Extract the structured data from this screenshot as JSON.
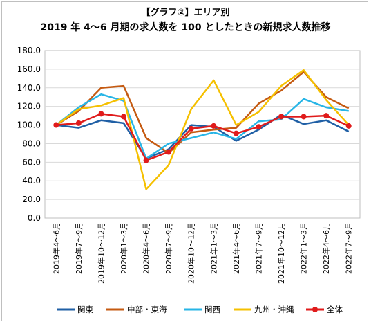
{
  "chart_data": {
    "type": "line",
    "title": "【グラフ②】エリア別",
    "subtitle": "2019 年 4～6 月期の求人数を 100 としたときの新規求人数推移",
    "categories": [
      "2019年4～6月",
      "2019年7～9月",
      "2019年10～12月",
      "2020年1～3月",
      "2020年4～6月",
      "2020年7～9月",
      "2020年10～12月",
      "2021年1～3月",
      "2021年4～6月",
      "2021年7～9月",
      "2021年10～12月",
      "2022年1～3月",
      "2022年4～6月",
      "2022年7～9月"
    ],
    "ylim": [
      0,
      180
    ],
    "yticks": [
      "0.0",
      "20.0",
      "40.0",
      "60.0",
      "80.0",
      "100.0",
      "120.0",
      "140.0",
      "160.0",
      "180.0"
    ],
    "grid": true,
    "legend_position": "bottom",
    "series": [
      {
        "name": "関東",
        "color": "#1f5fa5",
        "marker": false,
        "values": [
          100,
          97,
          105,
          102,
          64,
          74,
          100,
          98,
          83,
          95,
          111,
          101,
          105,
          93
        ]
      },
      {
        "name": "中部・東海",
        "color": "#c55a11",
        "marker": false,
        "values": [
          100,
          115,
          140,
          142,
          86,
          70,
          92,
          95,
          97,
          123,
          137,
          157,
          130,
          118
        ]
      },
      {
        "name": "関西",
        "color": "#27b5e6",
        "marker": false,
        "values": [
          100,
          119,
          133,
          126,
          64,
          80,
          86,
          92,
          85,
          104,
          106,
          128,
          119,
          115
        ]
      },
      {
        "name": "九州・沖縄",
        "color": "#f5c000",
        "marker": false,
        "values": [
          100,
          117,
          121,
          129,
          31,
          57,
          117,
          148,
          100,
          114,
          142,
          159,
          127,
          100
        ]
      },
      {
        "name": "全体",
        "color": "#e01b1b",
        "marker": true,
        "values": [
          100,
          102,
          112,
          109,
          62,
          71,
          96,
          99,
          91,
          98,
          109,
          109,
          110,
          99
        ]
      }
    ]
  }
}
